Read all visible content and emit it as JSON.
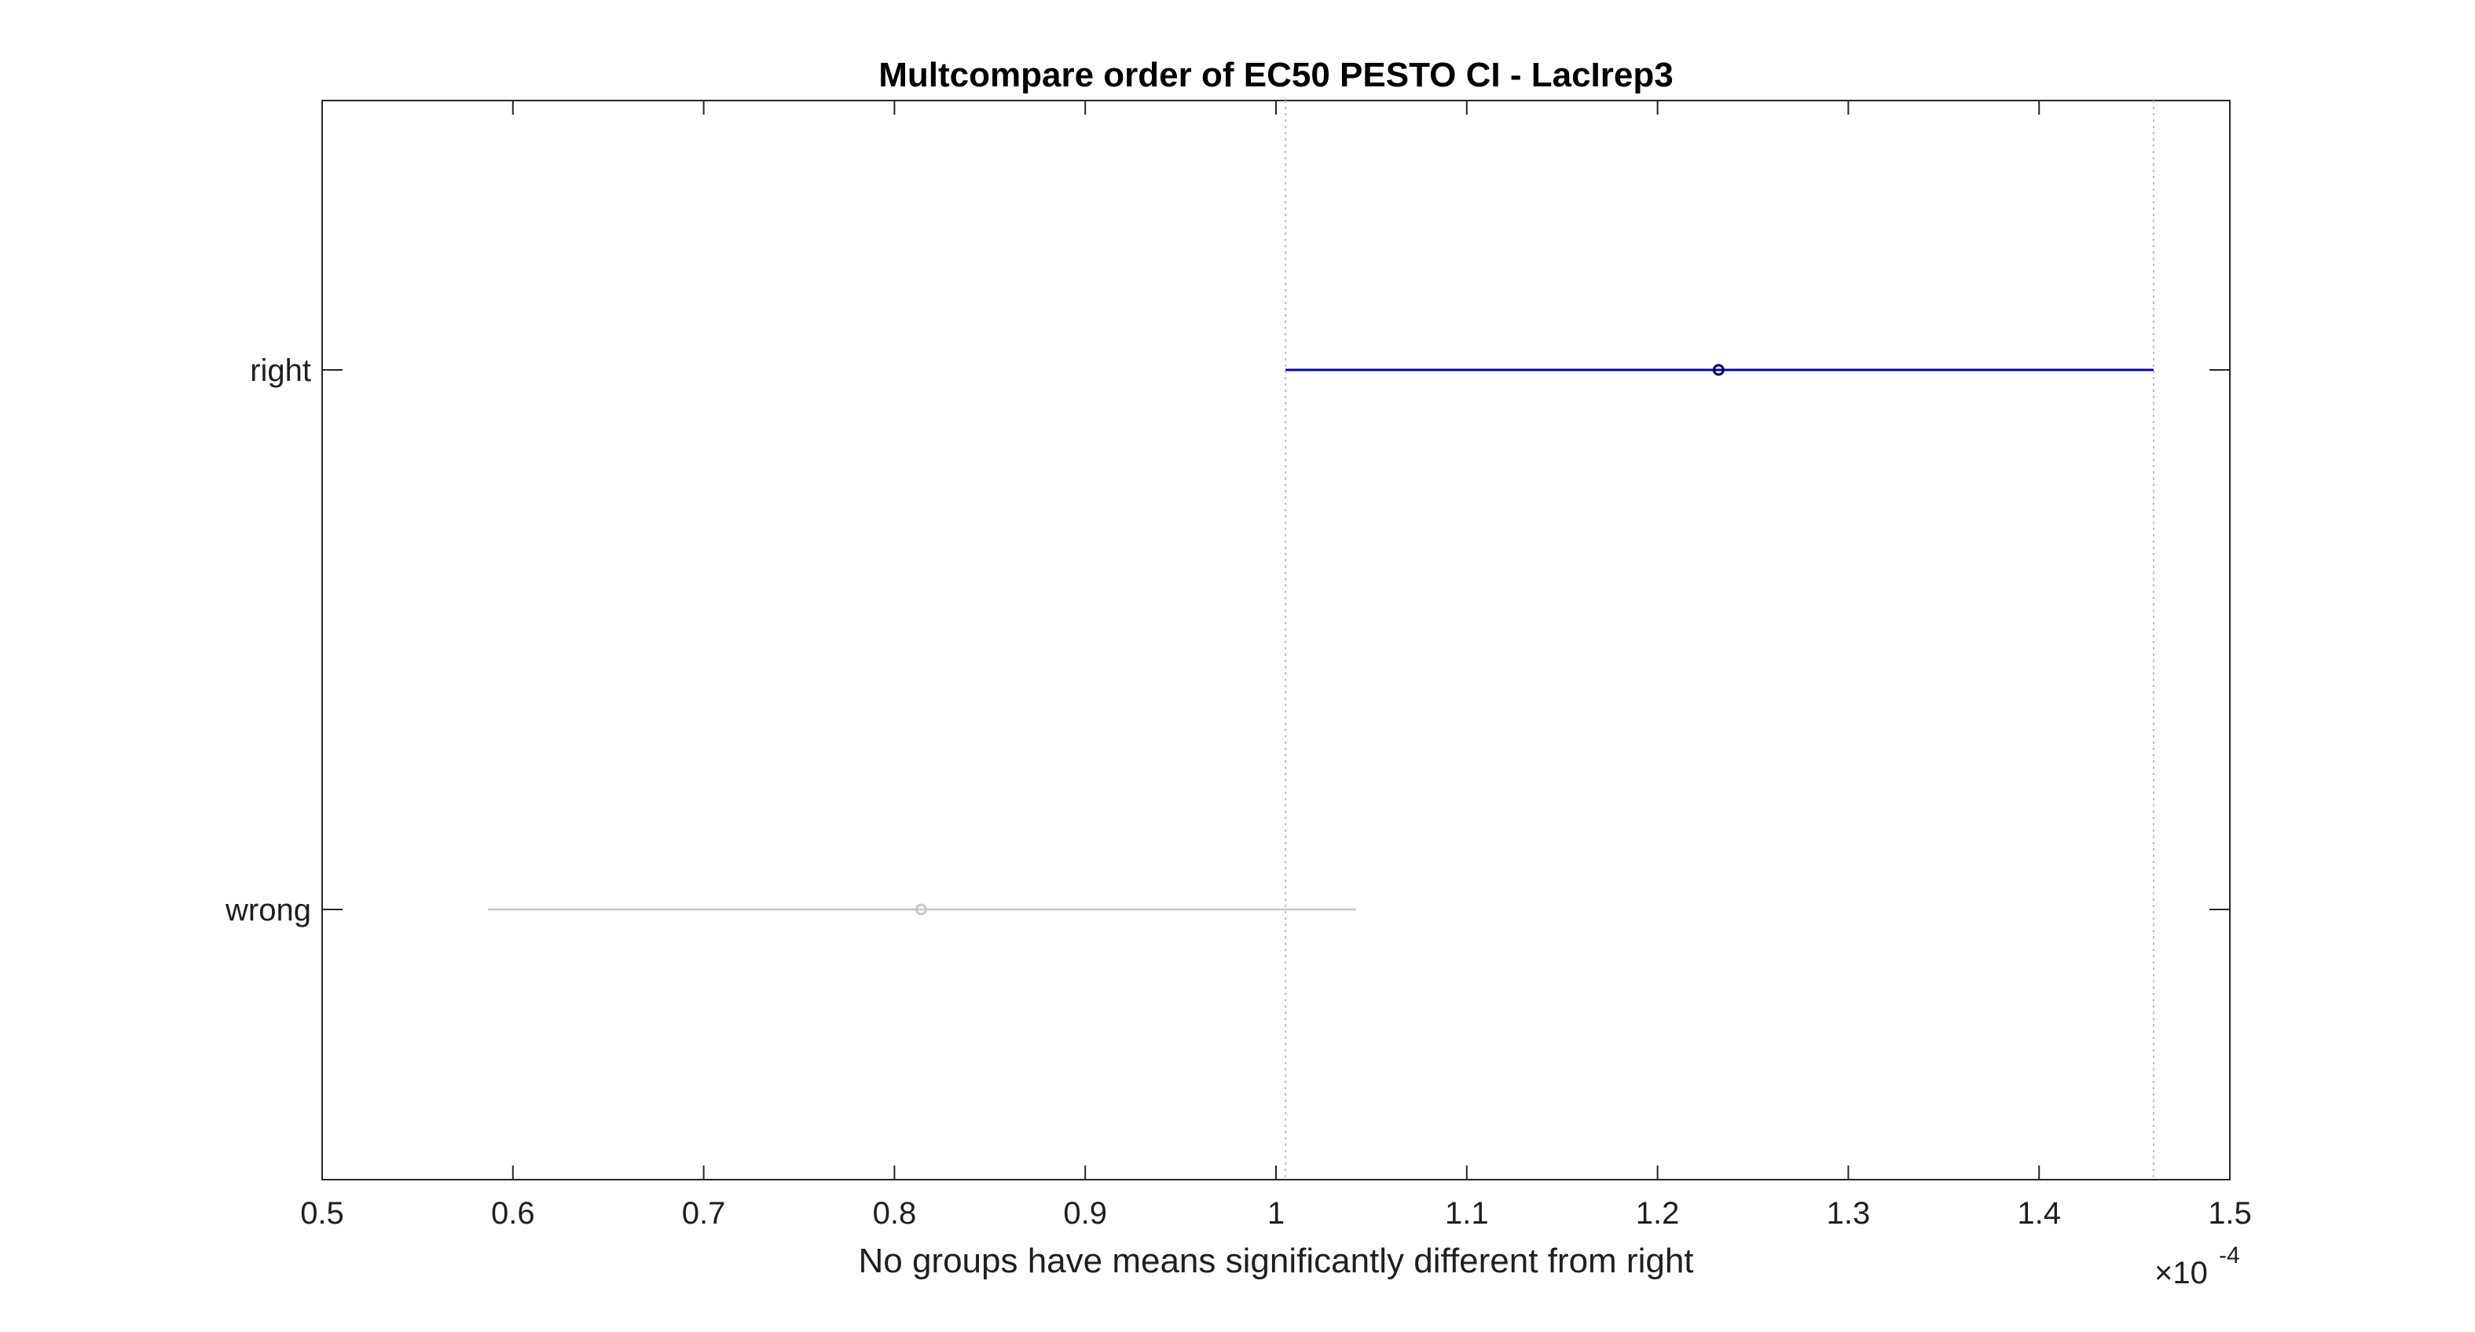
{
  "chart_data": {
    "type": "scatter",
    "title": "Multcompare order of EC50 PESTO CI - LacIrep3",
    "xlabel": "No groups have means significantly different from right",
    "ylabel": "",
    "x_exponent_base": "×10",
    "x_exponent": "-4",
    "xlim": [
      0.5,
      1.5
    ],
    "xticks": [
      0.5,
      0.6,
      0.7,
      0.8,
      0.9,
      1.0,
      1.1,
      1.2,
      1.3,
      1.4,
      1.5
    ],
    "xtick_labels": [
      "0.5",
      "0.6",
      "0.7",
      "0.8",
      "0.9",
      "1",
      "1.1",
      "1.2",
      "1.3",
      "1.4",
      "1.5"
    ],
    "categories": [
      "right",
      "wrong"
    ],
    "groups": [
      {
        "label": "right",
        "mean": 1.232,
        "lower": 1.005,
        "upper": 1.46,
        "color": "#0000cc",
        "selected": true
      },
      {
        "label": "wrong",
        "mean": 0.814,
        "lower": 0.587,
        "upper": 1.042,
        "color": "#c8c8c8",
        "selected": false
      }
    ],
    "reference_lines": [
      1.005,
      1.46
    ],
    "grid": false,
    "legend": "none"
  }
}
